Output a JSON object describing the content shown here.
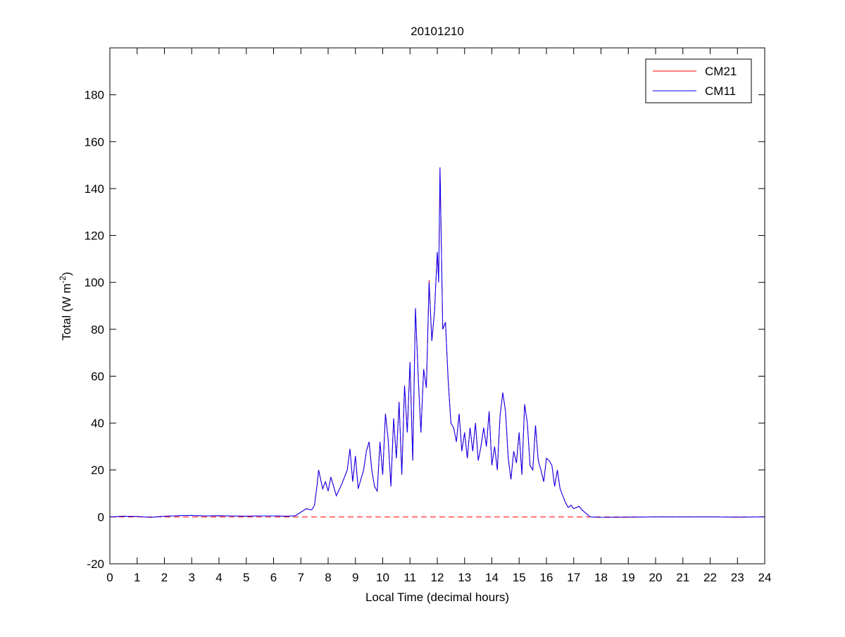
{
  "chart_data": {
    "type": "line",
    "title": "20101210",
    "xlabel": "Local Time (decimal hours)",
    "ylabel": {
      "text": "Total (W m",
      "sup": "-2",
      "end": ")"
    },
    "x": [
      0,
      0.5,
      1,
      1.5,
      2,
      2.5,
      3,
      3.5,
      4,
      4.5,
      5,
      5.5,
      6,
      6.5,
      6.8,
      7,
      7.2,
      7.4,
      7.5,
      7.6,
      7.65,
      7.8,
      7.9,
      8,
      8.1,
      8.2,
      8.3,
      8.5,
      8.7,
      8.8,
      8.9,
      9,
      9.1,
      9.3,
      9.4,
      9.5,
      9.6,
      9.7,
      9.8,
      9.9,
      10,
      10.1,
      10.2,
      10.3,
      10.4,
      10.5,
      10.6,
      10.7,
      10.8,
      10.9,
      11,
      11.1,
      11.2,
      11.3,
      11.4,
      11.5,
      11.6,
      11.7,
      11.8,
      11.9,
      12,
      12.05,
      12.1,
      12.2,
      12.3,
      12.4,
      12.5,
      12.6,
      12.7,
      12.8,
      12.9,
      13,
      13.1,
      13.2,
      13.3,
      13.4,
      13.5,
      13.6,
      13.7,
      13.8,
      13.9,
      14,
      14.1,
      14.2,
      14.3,
      14.4,
      14.5,
      14.6,
      14.7,
      14.8,
      14.9,
      15,
      15.1,
      15.2,
      15.3,
      15.4,
      15.5,
      15.6,
      15.7,
      15.8,
      15.9,
      16,
      16.1,
      16.2,
      16.3,
      16.4,
      16.5,
      16.6,
      16.7,
      16.8,
      16.9,
      17,
      17.2,
      17.3,
      17.5,
      17.6,
      18,
      19,
      20,
      21,
      22,
      23,
      24
    ],
    "series": [
      {
        "name": "CM21",
        "color": "#ff0000",
        "values": [
          0,
          0.3,
          0.2,
          -0.2,
          0.3,
          0.5,
          0.6,
          0.4,
          0.5,
          0.4,
          0.3,
          0.4,
          0.4,
          0.3,
          0.5,
          2,
          3.5,
          3,
          5,
          14,
          20,
          12,
          15,
          11,
          17,
          13,
          9,
          14,
          20,
          29,
          15,
          26,
          12,
          20,
          28,
          32,
          20,
          13,
          11,
          32,
          18,
          44,
          33,
          13,
          42,
          25,
          49,
          18,
          56,
          36,
          66,
          24,
          89,
          60,
          36,
          63,
          55,
          101,
          75,
          88,
          113,
          100,
          149,
          80,
          83,
          58,
          40,
          38,
          32,
          44,
          28,
          36,
          25,
          38,
          28,
          40,
          24,
          30,
          38,
          30,
          45,
          22,
          30,
          20,
          43,
          53,
          45,
          25,
          16,
          28,
          23,
          36,
          18,
          48,
          40,
          22,
          20,
          39,
          24,
          20,
          15,
          25,
          24,
          22,
          13,
          20,
          12,
          9,
          6,
          4,
          5,
          3.5,
          4.5,
          3,
          1,
          0,
          -0.2,
          -0.1,
          0,
          0,
          0,
          -0.1,
          0
        ]
      },
      {
        "name": "CM11",
        "color": "#0000ff",
        "values": [
          0,
          0.3,
          0.2,
          -0.2,
          0.3,
          0.5,
          0.6,
          0.4,
          0.5,
          0.4,
          0.3,
          0.4,
          0.4,
          0.3,
          0.5,
          2,
          3.5,
          3,
          5,
          14,
          20,
          12,
          15,
          11,
          17,
          13,
          9,
          14,
          20,
          29,
          15,
          26,
          12,
          20,
          28,
          32,
          20,
          13,
          11,
          32,
          18,
          44,
          33,
          13,
          42,
          25,
          49,
          18,
          56,
          36,
          66,
          24,
          89,
          60,
          36,
          63,
          55,
          100,
          75,
          88,
          113,
          100,
          149,
          80,
          83,
          58,
          40,
          38,
          32,
          44,
          28,
          36,
          25,
          38,
          28,
          40,
          24,
          30,
          38,
          30,
          45,
          22,
          30,
          20,
          43,
          53,
          45,
          25,
          16,
          28,
          23,
          36,
          18,
          48,
          40,
          22,
          20,
          39,
          24,
          20,
          15,
          25,
          24,
          22,
          13,
          20,
          12,
          9,
          6,
          4,
          5,
          3.5,
          4.5,
          3,
          1,
          0,
          -0.2,
          -0.1,
          0,
          0,
          0,
          -0.1,
          0
        ]
      }
    ],
    "reference_line": {
      "value": 0,
      "color": "#ff0000"
    },
    "xlim": [
      0,
      24
    ],
    "xticks": [
      0,
      1,
      2,
      3,
      4,
      5,
      6,
      7,
      8,
      9,
      10,
      11,
      12,
      13,
      14,
      15,
      16,
      17,
      18,
      19,
      20,
      21,
      22,
      23,
      24
    ],
    "ylim": [
      -20,
      200
    ],
    "yticks": [
      -20,
      0,
      20,
      40,
      60,
      80,
      100,
      120,
      140,
      160,
      180
    ],
    "legend": "northeast",
    "grid": false
  }
}
